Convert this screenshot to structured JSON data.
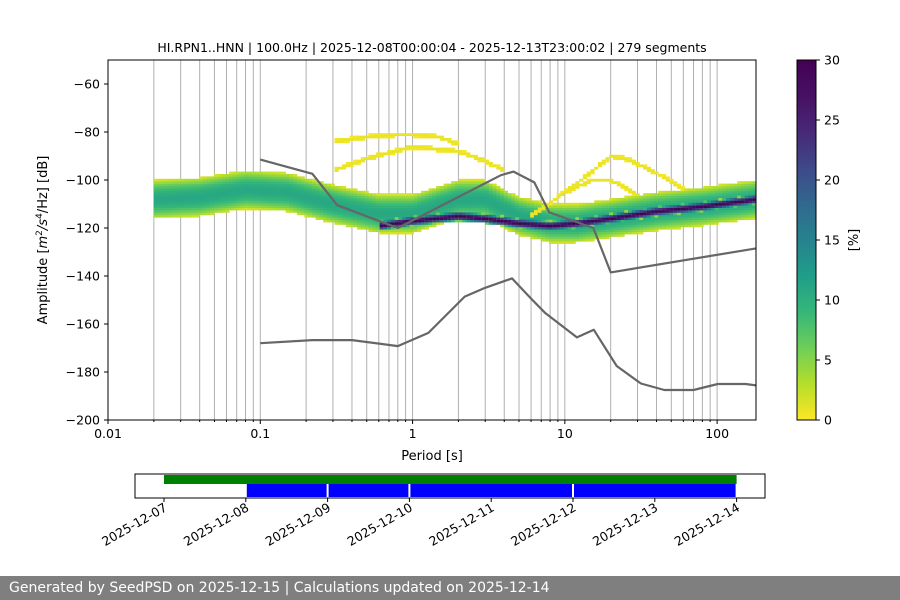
{
  "chart_data": {
    "type": "heatmap",
    "title": "HI.RPN1..HNN | 100.0Hz | 2025-12-08T00:00:04 - 2025-12-13T23:00:02 | 279 segments",
    "xlabel": "Period [s]",
    "ylabel": "Amplitude [m²/s⁴/Hz] [dB]",
    "ylabel_parts": {
      "prefix": "Amplitude [",
      "m": "m",
      "exp1": "2",
      "mid": "/s",
      "exp2": "4",
      "tail": "/Hz] [dB]"
    },
    "x_scale": "log",
    "xlim": [
      0.01,
      180
    ],
    "ylim": [
      -200,
      -50
    ],
    "x_ticks": [
      0.01,
      0.1,
      1,
      10,
      100
    ],
    "x_tick_labels": [
      "0.01",
      "0.1",
      "1",
      "10",
      "100"
    ],
    "y_ticks": [
      -200,
      -180,
      -160,
      -140,
      -120,
      -100,
      -80,
      -60
    ],
    "y_tick_labels": [
      "−200",
      "−180",
      "−160",
      "−140",
      "−120",
      "−100",
      "−80",
      "−60"
    ],
    "grid": "vertical minor log lines",
    "colorbar": {
      "label": "[%]",
      "range": [
        0,
        30
      ],
      "ticks": [
        0,
        5,
        10,
        15,
        20,
        25,
        30
      ],
      "tick_labels": [
        "0",
        "5",
        "10",
        "15",
        "20",
        "25",
        "30"
      ],
      "colormap": "viridis_r"
    },
    "noise_models": [
      {
        "name": "",
        "x": [
          0.1,
          0.22,
          0.4,
          0.8,
          1.27,
          2.2,
          3.0,
          4.5,
          6.0,
          7.4,
          12.0,
          15.5,
          21.9,
          31.6,
          45.0,
          70.0,
          101,
          154,
          180
        ],
        "y": [
          -168,
          -166.7,
          -166.7,
          -169.2,
          -163.7,
          -148.6,
          -144.9,
          -141.0,
          -149.4,
          -155.3,
          -165.6,
          -162.4,
          -177.5,
          -184.8,
          -187.5,
          -187.5,
          -185.0,
          -185.0,
          -185.6
        ]
      },
      {
        "name": "",
        "x": [
          0.1,
          0.22,
          0.32,
          0.8,
          3.8,
          4.6,
          6.3,
          7.9,
          15.4,
          20.0,
          180
        ],
        "y": [
          -91.5,
          -97.4,
          -110.5,
          -120.0,
          -98.0,
          -96.5,
          -101.0,
          -113.5,
          -120.0,
          -138.5,
          -128.5
        ]
      }
    ],
    "density_bands": [
      {
        "x": [
          0.02,
          0.04,
          0.08,
          0.15,
          0.3,
          0.6,
          1.0,
          2.0,
          3.0,
          5.0,
          8.0,
          12.0,
          20.0,
          40.0,
          80.0,
          180.0
        ],
        "y": [
          -108,
          -107,
          -104,
          -105,
          -110,
          -114,
          -114,
          -108,
          -108,
          -115,
          -118,
          -118,
          -116,
          -113,
          -111,
          -108
        ],
        "halfwidth": 8,
        "peak": 12
      },
      {
        "x": [
          0.6,
          1.0,
          2.0,
          3.0,
          5.0,
          8.0,
          12.0,
          20.0,
          40.0,
          80.0,
          180.0
        ],
        "y": [
          -119,
          -117,
          -115,
          -116,
          -118,
          -119,
          -118,
          -116,
          -113,
          -111,
          -108
        ],
        "halfwidth": 2,
        "peak": 30
      },
      {
        "x": [
          0.3,
          0.5,
          0.8,
          1.0,
          1.5,
          2.0
        ],
        "y": [
          -84,
          -82,
          -81,
          -81,
          -82,
          -85
        ],
        "halfwidth": 1,
        "peak": 1
      },
      {
        "x": [
          0.3,
          0.5,
          1.0,
          2.0,
          3.0,
          4.0
        ],
        "y": [
          -96,
          -91,
          -86,
          -88,
          -92,
          -96
        ],
        "halfwidth": 1,
        "peak": 1
      },
      {
        "x": [
          10.0,
          14.0,
          20.0,
          25.0,
          40.0,
          60.0
        ],
        "y": [
          -105,
          -98,
          -90,
          -91,
          -97,
          -104
        ],
        "halfwidth": 1,
        "peak": 1
      },
      {
        "x": [
          6.0,
          10.0,
          15.0,
          20.0,
          30.0
        ],
        "y": [
          -115,
          -105,
          -100,
          -100,
          -106
        ],
        "halfwidth": 1,
        "peak": 1
      }
    ]
  },
  "timeline": {
    "ticks": [
      "2025-12-07",
      "2025-12-08",
      "2025-12-09",
      "2025-12-10",
      "2025-12-11",
      "2025-12-12",
      "2025-12-13",
      "2025-12-14"
    ],
    "green_span": [
      "2025-12-07",
      "2025-12-14"
    ],
    "blue_segments": [
      [
        "2025-12-08",
        "2025-12-09"
      ],
      [
        "2025-12-09",
        "2025-12-10"
      ],
      [
        "2025-12-10",
        "2025-12-12"
      ],
      [
        "2025-12-12",
        "2025-12-14"
      ]
    ],
    "colors": {
      "green": "#008000",
      "blue": "#0000ff"
    }
  },
  "footer": "Generated by SeedPSD on 2025-12-15 | Calculations updated on 2025-12-14",
  "colors": {
    "model_line": "#666666",
    "grid": "#b0b0b0"
  }
}
